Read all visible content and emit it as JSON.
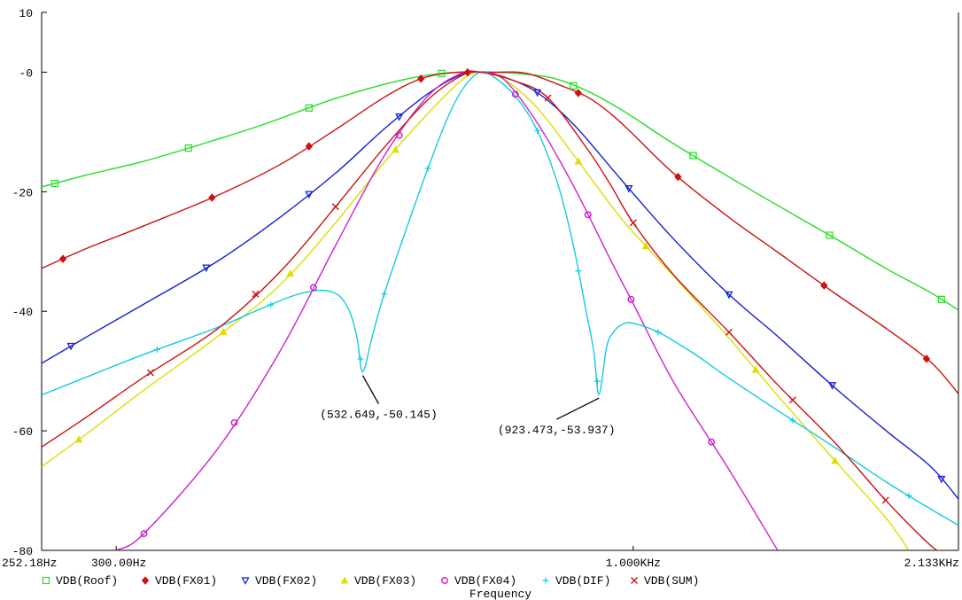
{
  "chart_data": {
    "type": "line",
    "xlabel": "Frequency",
    "x_scale": "log",
    "xlim": [
      252.18,
      2133
    ],
    "ylim": [
      -80,
      10
    ],
    "y_ticks": [
      10,
      0,
      -20,
      -40,
      -60,
      -80
    ],
    "y_tick_labels": [
      "10",
      "-0",
      "-20",
      "-40",
      "-60",
      "-80"
    ],
    "x_tick_labels": [
      {
        "value": 252.18,
        "label": "252.18Hz"
      },
      {
        "value": 300,
        "label": "300.00Hz"
      },
      {
        "value": 1000,
        "label": "1.000KHz"
      },
      {
        "value": 2133,
        "label": "2.133KHz"
      }
    ],
    "grid": false,
    "legend_placement": "bottom",
    "series": [
      {
        "name": "VDB(Roof)",
        "color": "#22dd22",
        "marker": "square",
        "points": [
          [
            252.18,
            -19.2
          ],
          [
            280,
            -17.2
          ],
          [
            320,
            -14.9
          ],
          [
            360,
            -12.4
          ],
          [
            420,
            -8.9
          ],
          [
            500,
            -4.4
          ],
          [
            580,
            -1.4
          ],
          [
            640,
            -0.2
          ],
          [
            700,
            0
          ],
          [
            760,
            -0.2
          ],
          [
            830,
            -1.0
          ],
          [
            900,
            -3.2
          ],
          [
            980,
            -6.6
          ],
          [
            1080,
            -11.2
          ],
          [
            1200,
            -15.8
          ],
          [
            1400,
            -22.3
          ],
          [
            1600,
            -27.8
          ],
          [
            1800,
            -32.8
          ],
          [
            2000,
            -36.9
          ],
          [
            2133,
            -39.8
          ]
        ],
        "marker_x": [
          260,
          355,
          470,
          640,
          870,
          1150,
          1580,
          2050
        ]
      },
      {
        "name": "VDB(FX01)",
        "color": "#cc1111",
        "marker": "diamond",
        "points": [
          [
            252.18,
            -32.8
          ],
          [
            280,
            -29.5
          ],
          [
            320,
            -25.7
          ],
          [
            380,
            -20.6
          ],
          [
            440,
            -15.4
          ],
          [
            500,
            -9.6
          ],
          [
            560,
            -4.2
          ],
          [
            610,
            -1.1
          ],
          [
            660,
            -0.05
          ],
          [
            720,
            0
          ],
          [
            780,
            -0.2
          ],
          [
            850,
            -2.4
          ],
          [
            900,
            -4.2
          ],
          [
            950,
            -7.0
          ],
          [
            1000,
            -10.4
          ],
          [
            1100,
            -17.0
          ],
          [
            1250,
            -24.3
          ],
          [
            1400,
            -30.1
          ],
          [
            1600,
            -37.0
          ],
          [
            1800,
            -42.8
          ],
          [
            2000,
            -48.5
          ],
          [
            2133,
            -53.8
          ]
        ],
        "marker_x": [
          265,
          375,
          470,
          610,
          680,
          880,
          1110,
          1560,
          1980
        ]
      },
      {
        "name": "VDB(FX02)",
        "color": "#1122cc",
        "marker": "triangle-down",
        "points": [
          [
            252.18,
            -48.7
          ],
          [
            280,
            -44.3
          ],
          [
            320,
            -38.8
          ],
          [
            380,
            -31.6
          ],
          [
            440,
            -24.2
          ],
          [
            500,
            -16.9
          ],
          [
            560,
            -9.5
          ],
          [
            620,
            -3.6
          ],
          [
            670,
            -0.4
          ],
          [
            700,
            0
          ],
          [
            740,
            -0.8
          ],
          [
            800,
            -3.4
          ],
          [
            870,
            -8.7
          ],
          [
            950,
            -16.0
          ],
          [
            1000,
            -20.3
          ],
          [
            1100,
            -28.0
          ],
          [
            1250,
            -37.2
          ],
          [
            1400,
            -44.2
          ],
          [
            1600,
            -52.8
          ],
          [
            1800,
            -59.9
          ],
          [
            2000,
            -66.0
          ],
          [
            2133,
            -71.4
          ]
        ],
        "marker_x": [
          270,
          370,
          470,
          580,
          800,
          990,
          1250,
          1590,
          2050
        ]
      },
      {
        "name": "VDB(FX03)",
        "color": "#dddd00",
        "marker": "triangle-up",
        "points": [
          [
            252.18,
            -66.0
          ],
          [
            280,
            -60.5
          ],
          [
            320,
            -53.2
          ],
          [
            380,
            -44.2
          ],
          [
            440,
            -35.5
          ],
          [
            500,
            -25.2
          ],
          [
            560,
            -15.1
          ],
          [
            620,
            -6.9
          ],
          [
            670,
            -1.4
          ],
          [
            700,
            0
          ],
          [
            740,
            -1.2
          ],
          [
            800,
            -6.0
          ],
          [
            870,
            -13.8
          ],
          [
            950,
            -22.3
          ],
          [
            1000,
            -26.8
          ],
          [
            1100,
            -34.2
          ],
          [
            1250,
            -44.5
          ],
          [
            1400,
            -54.1
          ],
          [
            1600,
            -65.0
          ],
          [
            1800,
            -74.5
          ],
          [
            1900,
            -80
          ]
        ],
        "marker_x": [
          275,
          385,
          450,
          575,
          880,
          1030,
          1330,
          1600
        ]
      },
      {
        "name": "VDB(FX04)",
        "color": "#cc22cc",
        "marker": "circle",
        "points": [
          [
            300,
            -80
          ],
          [
            320,
            -77.2
          ],
          [
            380,
            -63.0
          ],
          [
            440,
            -46.5
          ],
          [
            500,
            -29.0
          ],
          [
            560,
            -14.0
          ],
          [
            620,
            -4.0
          ],
          [
            670,
            -0.2
          ],
          [
            700,
            0
          ],
          [
            740,
            -1.2
          ],
          [
            800,
            -8.5
          ],
          [
            870,
            -19.0
          ],
          [
            950,
            -31.6
          ],
          [
            1000,
            -38.7
          ],
          [
            1100,
            -52.0
          ],
          [
            1250,
            -66.5
          ],
          [
            1400,
            -80
          ]
        ],
        "marker_x": [
          320,
          395,
          475,
          580,
          760,
          900,
          995,
          1200
        ]
      },
      {
        "name": "VDB(DIF)",
        "color": "#11ccdd",
        "marker": "plus",
        "points": [
          [
            252.18,
            -54.0
          ],
          [
            280,
            -51.0
          ],
          [
            320,
            -47.2
          ],
          [
            380,
            -42.7
          ],
          [
            420,
            -39.6
          ],
          [
            455,
            -37.3
          ],
          [
            485,
            -36.5
          ],
          [
            505,
            -37.5
          ],
          [
            518,
            -40.5
          ],
          [
            526,
            -44.7
          ],
          [
            532.649,
            -50.145
          ],
          [
            545,
            -44.0
          ],
          [
            560,
            -37.1
          ],
          [
            590,
            -26.1
          ],
          [
            620,
            -16.1
          ],
          [
            650,
            -7.4
          ],
          [
            675,
            -2.4
          ],
          [
            700,
            0
          ],
          [
            720,
            -0.6
          ],
          [
            760,
            -4.0
          ],
          [
            800,
            -9.8
          ],
          [
            840,
            -19.0
          ],
          [
            870,
            -29.0
          ],
          [
            895,
            -39.5
          ],
          [
            912,
            -46.5
          ],
          [
            923.473,
            -53.937
          ],
          [
            940,
            -46.0
          ],
          [
            955,
            -43.5
          ],
          [
            975,
            -42.2
          ],
          [
            1000,
            -42.0
          ],
          [
            1060,
            -43.5
          ],
          [
            1150,
            -47.0
          ],
          [
            1250,
            -51.2
          ],
          [
            1400,
            -56.6
          ],
          [
            1600,
            -62.8
          ],
          [
            1800,
            -68.5
          ],
          [
            2000,
            -73.1
          ],
          [
            2133,
            -75.8
          ]
        ],
        "marker_x": [
          330,
          430,
          530,
          560,
          620,
          800,
          880,
          920,
          1060,
          1450,
          1900
        ]
      },
      {
        "name": "VDB(SUM)",
        "color": "#cc1111",
        "marker": "x",
        "points": [
          [
            252.18,
            -62.7
          ],
          [
            280,
            -57.7
          ],
          [
            320,
            -51.0
          ],
          [
            380,
            -42.9
          ],
          [
            440,
            -33.3
          ],
          [
            500,
            -22.5
          ],
          [
            560,
            -12.6
          ],
          [
            620,
            -4.6
          ],
          [
            670,
            -0.6
          ],
          [
            700,
            0
          ],
          [
            760,
            -1.5
          ],
          [
            820,
            -4.3
          ],
          [
            900,
            -13.0
          ],
          [
            950,
            -19.0
          ],
          [
            1000,
            -25.2
          ],
          [
            1100,
            -34.0
          ],
          [
            1250,
            -43.5
          ],
          [
            1400,
            -52.3
          ],
          [
            1600,
            -62.0
          ],
          [
            1800,
            -71.6
          ],
          [
            2000,
            -79.2
          ],
          [
            2050,
            -80
          ]
        ],
        "marker_x": [
          325,
          415,
          500,
          820,
          1000,
          1250,
          1450,
          1800
        ]
      }
    ],
    "annotations": [
      {
        "x": 532.649,
        "y": -50.145,
        "text": "(532.649,-50.145)"
      },
      {
        "x": 923.473,
        "y": -53.937,
        "text": "(923.473,-53.937)"
      }
    ]
  }
}
